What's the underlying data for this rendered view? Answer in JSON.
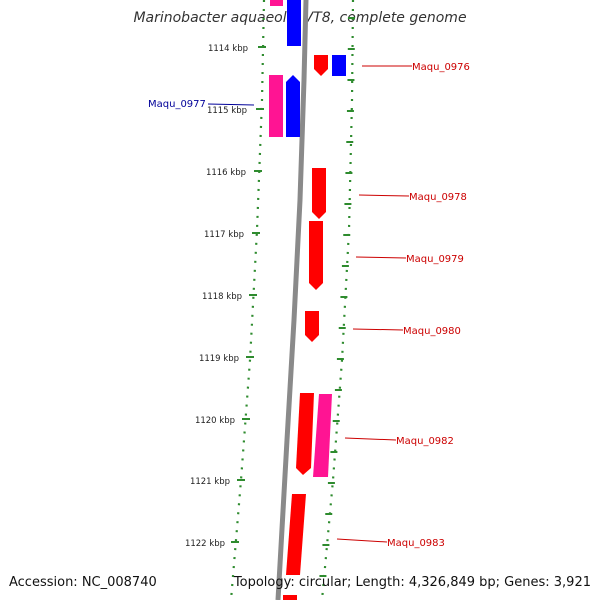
{
  "title": "Marinobacter aquaeolei VT8, complete genome",
  "accession_label": "Accession: NC_008740",
  "summary_label": "Topology: circular; Length: 4,326,849 bp; Genes: 3,921",
  "colors": {
    "backbone": "#8a8a8a",
    "ticks": "#2e8b2e",
    "forward_gene": "#ff0000",
    "reverse_gene": "#0000ff",
    "pink_gene": "#ff1493",
    "label_red": "#cc0000",
    "label_blue": "#000099"
  },
  "kbp_ticks": [
    {
      "label": "1114 kbp"
    },
    {
      "label": "1115 kbp"
    },
    {
      "label": "1116 kbp"
    },
    {
      "label": "1117 kbp"
    },
    {
      "label": "1118 kbp"
    },
    {
      "label": "1119 kbp"
    },
    {
      "label": "1120 kbp"
    },
    {
      "label": "1121 kbp"
    },
    {
      "label": "1122 kbp"
    }
  ],
  "gene_labels": [
    {
      "label": "Maqu_0976"
    },
    {
      "label": "Maqu_0977"
    },
    {
      "label": "Maqu_0978"
    },
    {
      "label": "Maqu_0979"
    },
    {
      "label": "Maqu_0980"
    },
    {
      "label": "Maqu_0982"
    },
    {
      "label": "Maqu_0983"
    }
  ]
}
